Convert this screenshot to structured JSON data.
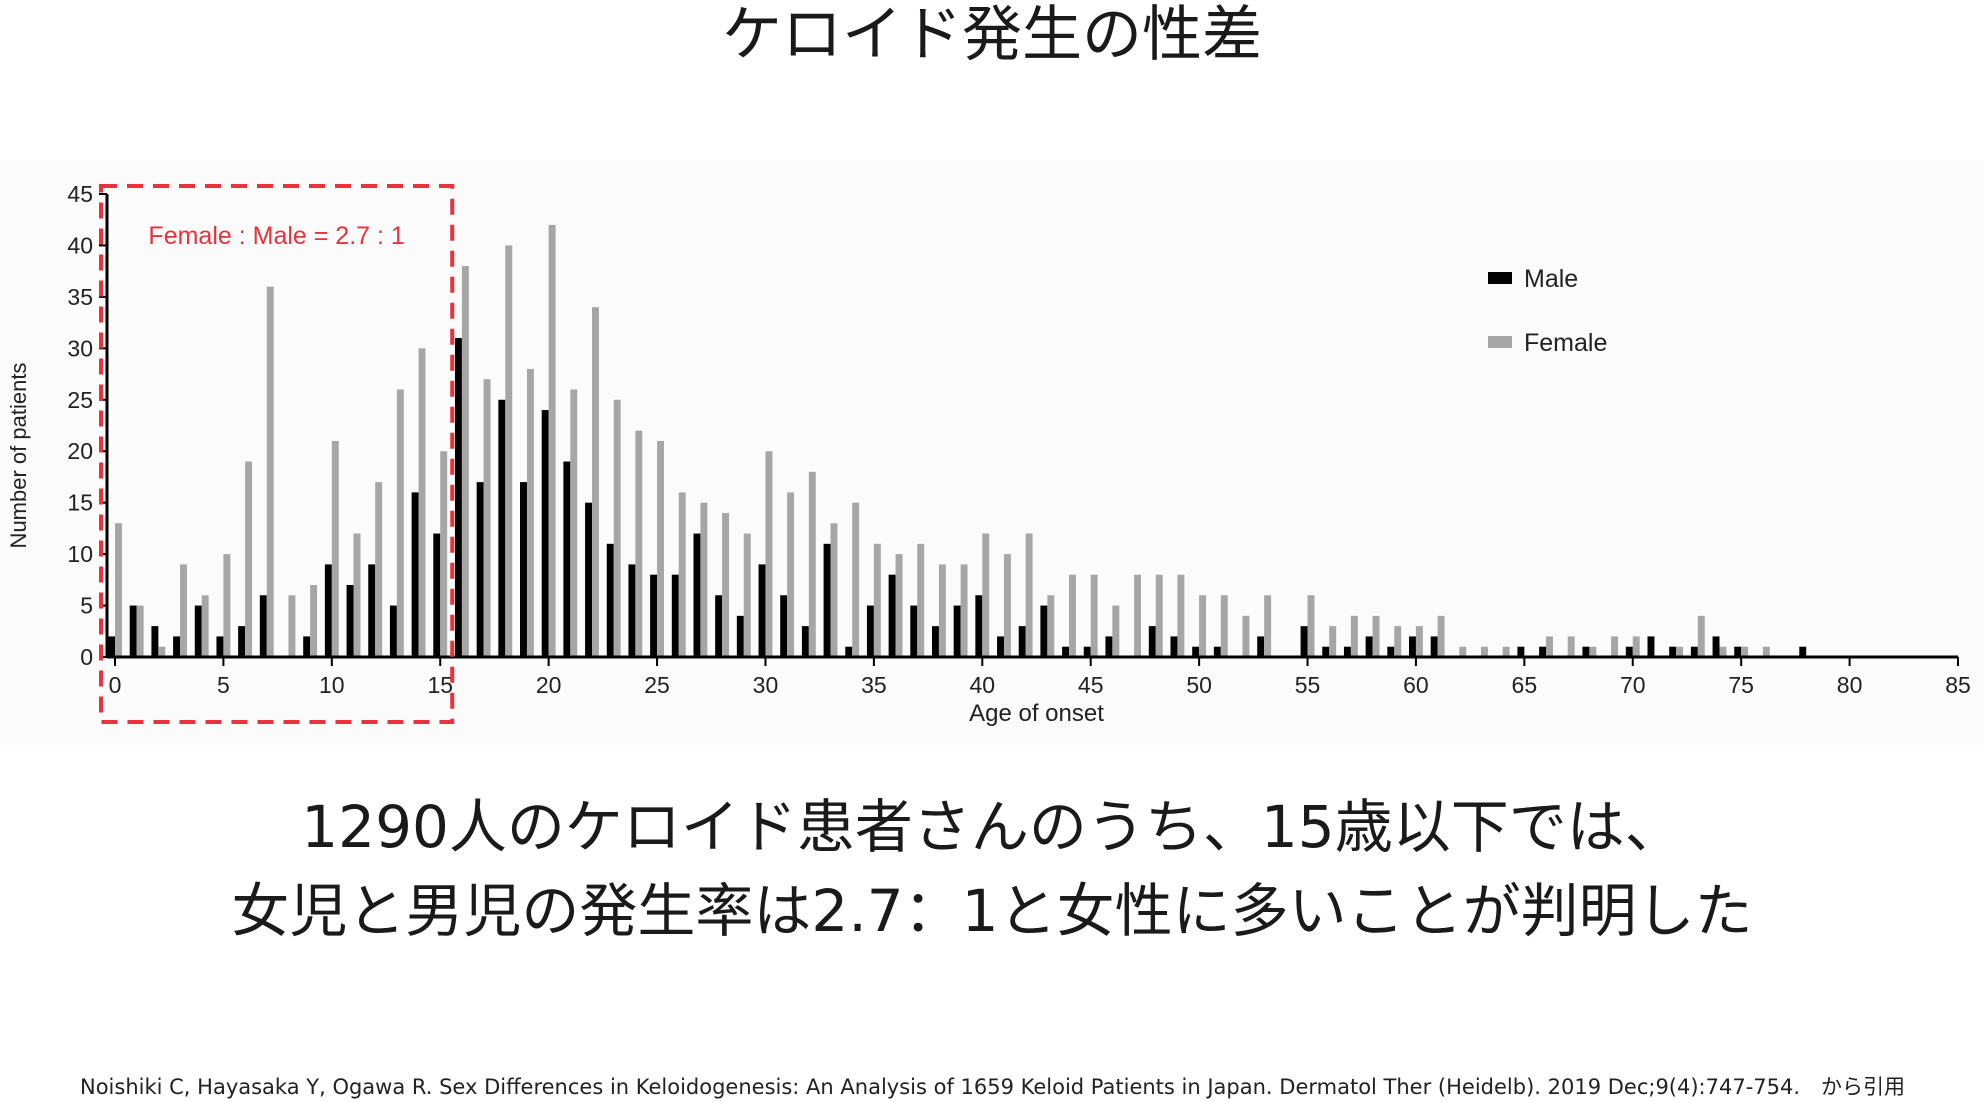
{
  "title": "ケロイド発生の性差",
  "body_lines": [
    "1290人のケロイド患者さんのうち、15歳以下では、",
    "女児と男児の発生率は2.7：1と女性に多いことが判明した"
  ],
  "citation": "Noishiki C, Hayasaka Y, Ogawa R. Sex Differences in Keloidogenesis: An Analysis of 1659 Keloid Patients in Japan. Dermatol Ther (Heidelb). 2019 Dec;9(4):747-754.　から引用",
  "colors": {
    "male": "#000000",
    "female": "#a6a6a6",
    "highlight": "#e8323c"
  },
  "chart_data": {
    "type": "bar",
    "xlabel": "Age of onset",
    "ylabel": "Number of patients",
    "xlim": [
      0,
      85
    ],
    "ylim": [
      0,
      45
    ],
    "x_ticks": [
      0,
      5,
      10,
      15,
      20,
      25,
      30,
      35,
      40,
      45,
      50,
      55,
      60,
      65,
      70,
      75,
      80,
      85
    ],
    "y_ticks": [
      0,
      5,
      10,
      15,
      20,
      25,
      30,
      35,
      40,
      45
    ],
    "legend_position": "top-right",
    "annotation": {
      "text": "Female : Male = 2.7 : 1",
      "x_range": [
        0,
        15
      ]
    },
    "ages": [
      0,
      1,
      2,
      3,
      4,
      5,
      6,
      7,
      8,
      9,
      10,
      11,
      12,
      13,
      14,
      15,
      16,
      17,
      18,
      19,
      20,
      21,
      22,
      23,
      24,
      25,
      26,
      27,
      28,
      29,
      30,
      31,
      32,
      33,
      34,
      35,
      36,
      37,
      38,
      39,
      40,
      41,
      42,
      43,
      44,
      45,
      46,
      47,
      48,
      49,
      50,
      51,
      52,
      53,
      54,
      55,
      56,
      57,
      58,
      59,
      60,
      61,
      62,
      63,
      64,
      65,
      66,
      67,
      68,
      69,
      70,
      71,
      72,
      73,
      74,
      75,
      76,
      77,
      78
    ],
    "series": [
      {
        "name": "Male",
        "values": [
          2,
          5,
          3,
          2,
          5,
          2,
          3,
          6,
          0,
          2,
          9,
          7,
          9,
          5,
          16,
          12,
          31,
          17,
          25,
          17,
          24,
          19,
          15,
          11,
          9,
          8,
          8,
          12,
          6,
          4,
          9,
          6,
          3,
          11,
          1,
          5,
          8,
          5,
          3,
          5,
          6,
          2,
          3,
          5,
          1,
          1,
          2,
          0,
          3,
          2,
          1,
          1,
          0,
          2,
          0,
          3,
          1,
          1,
          2,
          1,
          2,
          2,
          0,
          0,
          0,
          1,
          1,
          0,
          1,
          0,
          1,
          2,
          1,
          1,
          2,
          1,
          0,
          0,
          1
        ]
      },
      {
        "name": "Female",
        "values": [
          13,
          5,
          1,
          9,
          6,
          10,
          19,
          36,
          6,
          7,
          21,
          12,
          17,
          26,
          30,
          20,
          38,
          27,
          40,
          28,
          42,
          26,
          34,
          25,
          22,
          21,
          16,
          15,
          14,
          12,
          20,
          16,
          18,
          13,
          15,
          11,
          10,
          11,
          9,
          9,
          12,
          10,
          12,
          6,
          8,
          8,
          5,
          8,
          8,
          8,
          6,
          6,
          4,
          6,
          0,
          6,
          3,
          4,
          4,
          3,
          3,
          4,
          1,
          1,
          1,
          0,
          2,
          2,
          1,
          2,
          2,
          0,
          1,
          4,
          1,
          1,
          1,
          0,
          0
        ]
      }
    ]
  }
}
